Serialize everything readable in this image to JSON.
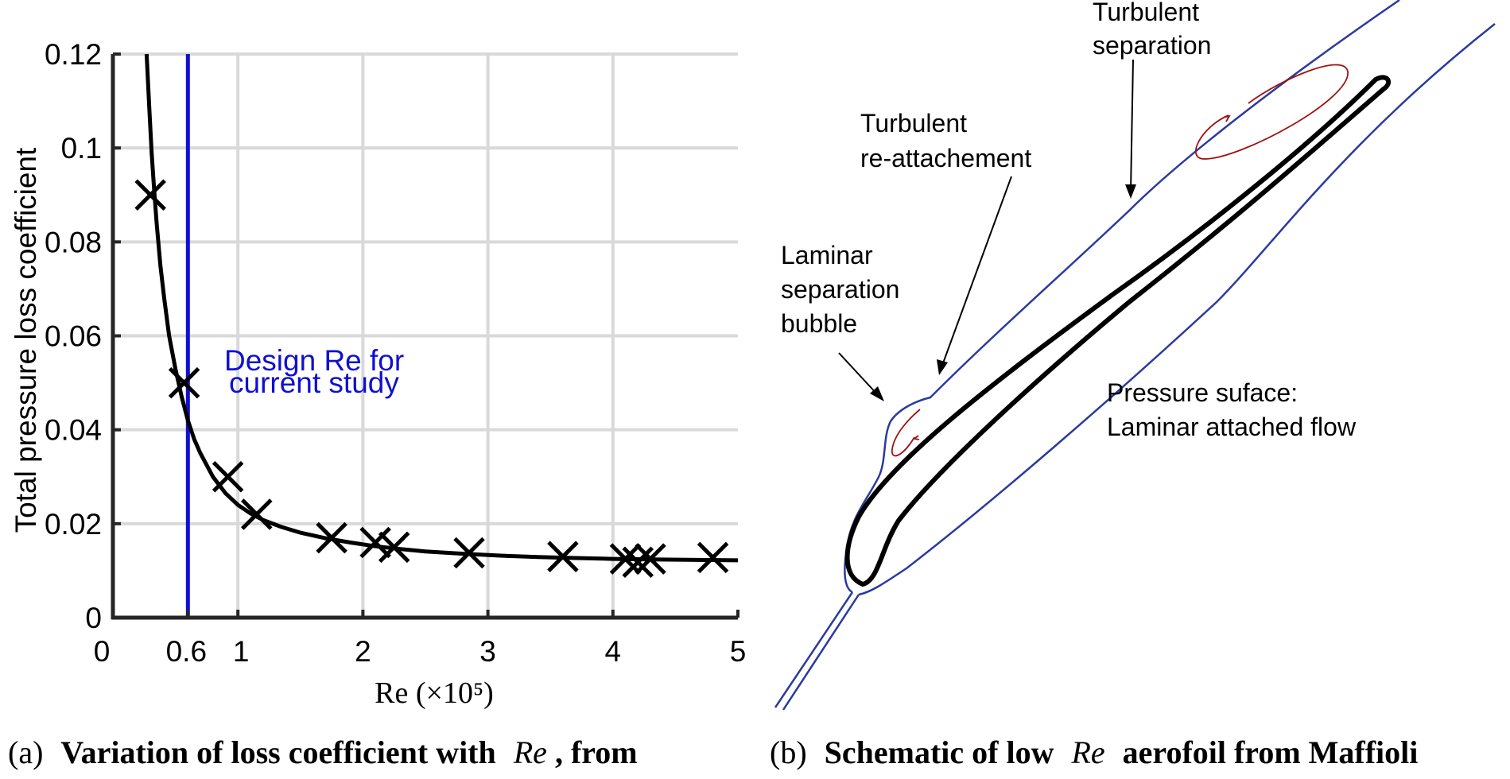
{
  "chart_data": [
    {
      "type": "line",
      "xlabel": "Re (×10⁵)",
      "ylabel": "Total pressure loss coefficient",
      "xlim": [
        0,
        5
      ],
      "ylim": [
        0,
        0.12
      ],
      "xticks": [
        {
          "value": 0,
          "label": "0"
        },
        {
          "value": 0.6,
          "label": "0.6"
        },
        {
          "value": 1,
          "label": "1"
        },
        {
          "value": 2,
          "label": "2"
        },
        {
          "value": 3,
          "label": "3"
        },
        {
          "value": 4,
          "label": "4"
        },
        {
          "value": 5,
          "label": "5"
        }
      ],
      "yticks": [
        {
          "value": 0,
          "label": "0"
        },
        {
          "value": 0.02,
          "label": "0.02"
        },
        {
          "value": 0.04,
          "label": "0.04"
        },
        {
          "value": 0.06,
          "label": "0.06"
        },
        {
          "value": 0.08,
          "label": "0.08"
        },
        {
          "value": 0.1,
          "label": "0.1"
        },
        {
          "value": 0.12,
          "label": "0.12"
        }
      ],
      "grid": true,
      "series": [
        {
          "kind": "fit-curve",
          "color": "#000000",
          "x": [
            0.27,
            0.29,
            0.31,
            0.33,
            0.35,
            0.38,
            0.41,
            0.45,
            0.5,
            0.55,
            0.6,
            0.65,
            0.7,
            0.8,
            0.9,
            1.0,
            1.1,
            1.2,
            1.35,
            1.5,
            1.7,
            1.9,
            2.1,
            2.3,
            2.5,
            2.8,
            3.1,
            3.4,
            3.7,
            4.0,
            4.3,
            4.6,
            5.0
          ],
          "y": [
            0.12,
            0.109,
            0.099,
            0.091,
            0.084,
            0.075,
            0.068,
            0.06,
            0.053,
            0.047,
            0.042,
            0.038,
            0.035,
            0.03,
            0.0265,
            0.024,
            0.0222,
            0.0208,
            0.0193,
            0.0181,
            0.0169,
            0.016,
            0.0152,
            0.0146,
            0.0141,
            0.0136,
            0.0132,
            0.0129,
            0.0127,
            0.0125,
            0.0124,
            0.0123,
            0.0122
          ]
        },
        {
          "kind": "measured",
          "marker": "x",
          "color": "#000000",
          "x": [
            0.3,
            0.57,
            0.92,
            1.15,
            1.75,
            2.1,
            2.25,
            2.85,
            3.6,
            4.1,
            4.2,
            4.3,
            4.8
          ],
          "y": [
            0.09,
            0.05,
            0.03,
            0.022,
            0.017,
            0.016,
            0.015,
            0.0138,
            0.013,
            0.0125,
            0.0118,
            0.0125,
            0.0128
          ]
        }
      ],
      "reference_line": {
        "x": 0.6,
        "color": "#1010d0"
      },
      "annotation": "Design Re for\ncurrent study",
      "caption": {
        "label": "(a)",
        "text": "Variation of loss coefficient with",
        "math": "Re",
        "after": ", from"
      }
    }
  ],
  "diagram": {
    "labels": {
      "turb_sep": [
        "Turbulent",
        "separation"
      ],
      "turb_reatt": [
        "Turbulent",
        "re-attachement"
      ],
      "lam_sep": [
        "Laminar",
        "separation",
        "bubble"
      ],
      "pressure": [
        "Pressure suface:",
        "Laminar attached flow"
      ]
    },
    "colors": {
      "boundary": "#2b3a9e",
      "airfoil": "#000000",
      "vortex": "#a01010"
    },
    "caption": {
      "label": "(b)",
      "text": "Schematic of low",
      "math": "Re",
      "after": "aerofoil from Maffioli"
    }
  }
}
